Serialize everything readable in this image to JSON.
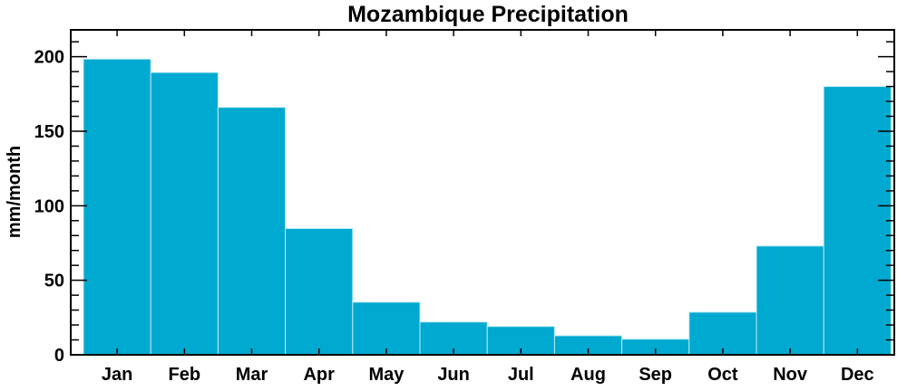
{
  "chart_data": {
    "type": "bar",
    "title": "Mozambique Precipitation",
    "xlabel": "",
    "ylabel": "mm/month",
    "categories": [
      "Jan",
      "Feb",
      "Mar",
      "Apr",
      "May",
      "Jun",
      "Jul",
      "Aug",
      "Sep",
      "Oct",
      "Nov",
      "Dec"
    ],
    "values": [
      198.4,
      189.4,
      166,
      84.7,
      35.3,
      22,
      19,
      12.8,
      10.5,
      28.6,
      73,
      180
    ],
    "ylim": [
      0,
      218
    ],
    "yticks": [
      0,
      50,
      100,
      150,
      200
    ],
    "ytick_labels": [
      "0",
      "50",
      "100",
      "150",
      "200"
    ],
    "grid": false,
    "bar_color": "#00a9d0"
  }
}
